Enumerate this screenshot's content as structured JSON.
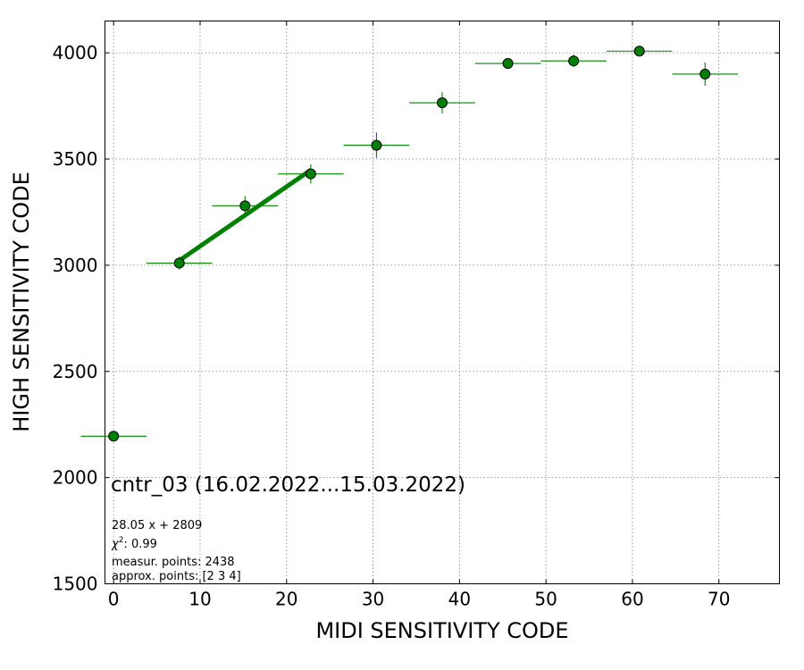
{
  "chart_data": {
    "type": "scatter",
    "xlabel": "MIDI SENSITIVITY CODE",
    "ylabel": "HIGH SENSITIVITY CODE",
    "xlim": [
      -1,
      77
    ],
    "ylim": [
      1500,
      4150
    ],
    "xticks": [
      0,
      10,
      20,
      30,
      40,
      50,
      60,
      70
    ],
    "yticks": [
      1500,
      2000,
      2500,
      3000,
      3500,
      4000
    ],
    "grid": true,
    "colors": {
      "points": "#008000",
      "fit_line": "#008000",
      "point_edge": "#000000"
    },
    "points": [
      {
        "x": 0,
        "y": 2195,
        "xerr": 3.8,
        "yerr": 0
      },
      {
        "x": 7.6,
        "y": 3010,
        "xerr": 3.8,
        "yerr": 30
      },
      {
        "x": 15.2,
        "y": 3280,
        "xerr": 3.8,
        "yerr": 45
      },
      {
        "x": 22.8,
        "y": 3430,
        "xerr": 3.8,
        "yerr": 45
      },
      {
        "x": 30.4,
        "y": 3565,
        "xerr": 3.8,
        "yerr": 60
      },
      {
        "x": 38.0,
        "y": 3765,
        "xerr": 3.8,
        "yerr": 50
      },
      {
        "x": 45.6,
        "y": 3950,
        "xerr": 3.8,
        "yerr": 25
      },
      {
        "x": 53.2,
        "y": 3962,
        "xerr": 3.8,
        "yerr": 30
      },
      {
        "x": 60.8,
        "y": 4008,
        "xerr": 3.8,
        "yerr": 25
      },
      {
        "x": 68.4,
        "y": 3900,
        "xerr": 3.8,
        "yerr": 55
      }
    ],
    "fit": {
      "slope": 28.05,
      "intercept": 2809,
      "x_range": [
        7.6,
        22.8
      ]
    },
    "annotations": {
      "title": "cntr_03 (16.02.2022...15.03.2022)",
      "equation": "28.05 x + 2809",
      "chi2": "0.99",
      "chi2_label_suffix": ": 0.99",
      "measur_points": "measur. points: 2438",
      "approx_points": "approx. points: [2 3 4]"
    }
  }
}
